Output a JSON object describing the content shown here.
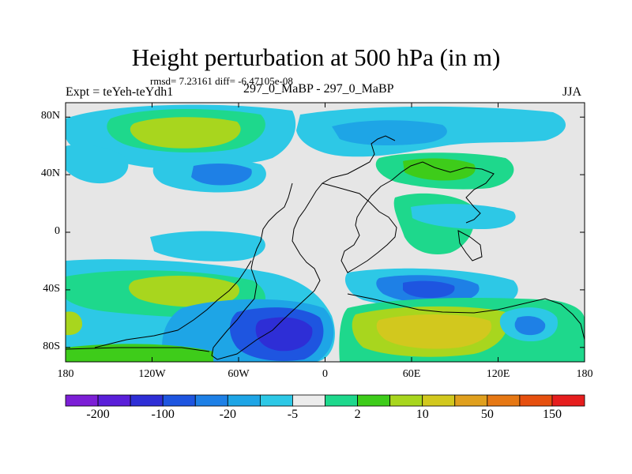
{
  "title": "Height perturbation at 500 hPa (in m)",
  "stats_line": "rmsd= 7.23161 diff= -6.47105e-08",
  "left_label": "Expt = teYeh-teYdh1",
  "center_label": "297_0_MaBP - 297_0_MaBP",
  "right_label": "JJA",
  "map": {
    "y_ticks": [
      {
        "label": "80N",
        "lat": 80
      },
      {
        "label": "40N",
        "lat": 40
      },
      {
        "label": "0",
        "lat": 0
      },
      {
        "label": "40S",
        "lat": -40
      },
      {
        "label": "80S",
        "lat": -80
      }
    ],
    "x_ticks": [
      {
        "label": "180",
        "lon": -180
      },
      {
        "label": "120W",
        "lon": -120
      },
      {
        "label": "60W",
        "lon": -60
      },
      {
        "label": "0",
        "lon": 0
      },
      {
        "label": "60E",
        "lon": 60
      },
      {
        "label": "120E",
        "lon": 120
      },
      {
        "label": "180",
        "lon": 180
      }
    ],
    "lon_range": [
      -180,
      180
    ],
    "lat_range": [
      -90,
      90
    ],
    "background_color": "#e6e6e6"
  },
  "colorbar": {
    "colors": [
      "#7c1fd6",
      "#5a1fd9",
      "#2e2ed6",
      "#1e55e0",
      "#1e80e6",
      "#1ea5e6",
      "#2dc8e6",
      "#ececec",
      "#1ed88c",
      "#3ecc1a",
      "#a8d61e",
      "#d2c81e",
      "#e0a01e",
      "#e67814",
      "#e6500f",
      "#e61e1e"
    ],
    "labels": [
      {
        "text": "-200",
        "index": 1
      },
      {
        "text": "-100",
        "index": 3
      },
      {
        "text": "-20",
        "index": 5
      },
      {
        "text": "-5",
        "index": 7
      },
      {
        "text": "2",
        "index": 9
      },
      {
        "text": "10",
        "index": 11
      },
      {
        "text": "50",
        "index": 13
      },
      {
        "text": "150",
        "index": 15
      }
    ]
  }
}
